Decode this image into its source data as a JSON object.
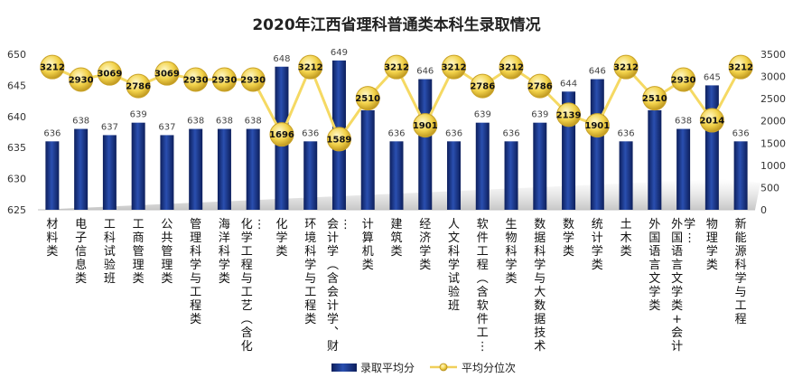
{
  "chart_data": {
    "type": "bar+line",
    "title": "2020年江西省理科普通类本科生录取情况",
    "categories": [
      "材料类",
      "电子信息类",
      "工科试验班",
      "工商管理类",
      "公共管理类",
      "管理科学与工程类",
      "海洋科学类",
      "化学工程与工艺（含化…",
      "化学类",
      "环境科学与工程类",
      "会计学（含会计学、财…",
      "计算机类",
      "建筑类",
      "经济学类",
      "人文科学试验班",
      "软件工程（含软件工…",
      "生物科学类",
      "数据科学与大数据技术",
      "数学类",
      "统计学类",
      "土木类",
      "外国语言文学类",
      "外国语言文学类+会计学…",
      "物理学类",
      "新能源科学与工程"
    ],
    "series": [
      {
        "name": "录取平均分",
        "axis": "left",
        "color": "#1f3a8a",
        "values": [
          636,
          638,
          637,
          639,
          637,
          638,
          638,
          638,
          648,
          636,
          649,
          641,
          636,
          646,
          636,
          639,
          636,
          639,
          644,
          646,
          636,
          641,
          638,
          645,
          636
        ]
      },
      {
        "name": "平均分位次",
        "axis": "right",
        "color": "#f0cf5a",
        "values": [
          3212,
          2930,
          3069,
          2786,
          3069,
          2930,
          2930,
          2930,
          1696,
          3212,
          1589,
          2510,
          3212,
          1901,
          3212,
          2786,
          3212,
          2786,
          2139,
          1901,
          3212,
          2510,
          2930,
          2014,
          3212
        ]
      }
    ],
    "y_left": {
      "min": 625,
      "max": 650,
      "ticks": [
        625,
        630,
        635,
        640,
        645,
        650
      ]
    },
    "y_right": {
      "min": 0,
      "max": 3500,
      "ticks": [
        0,
        500,
        1000,
        1500,
        2000,
        2500,
        3000,
        3500
      ]
    },
    "legend_position": "bottom",
    "grid": false
  }
}
